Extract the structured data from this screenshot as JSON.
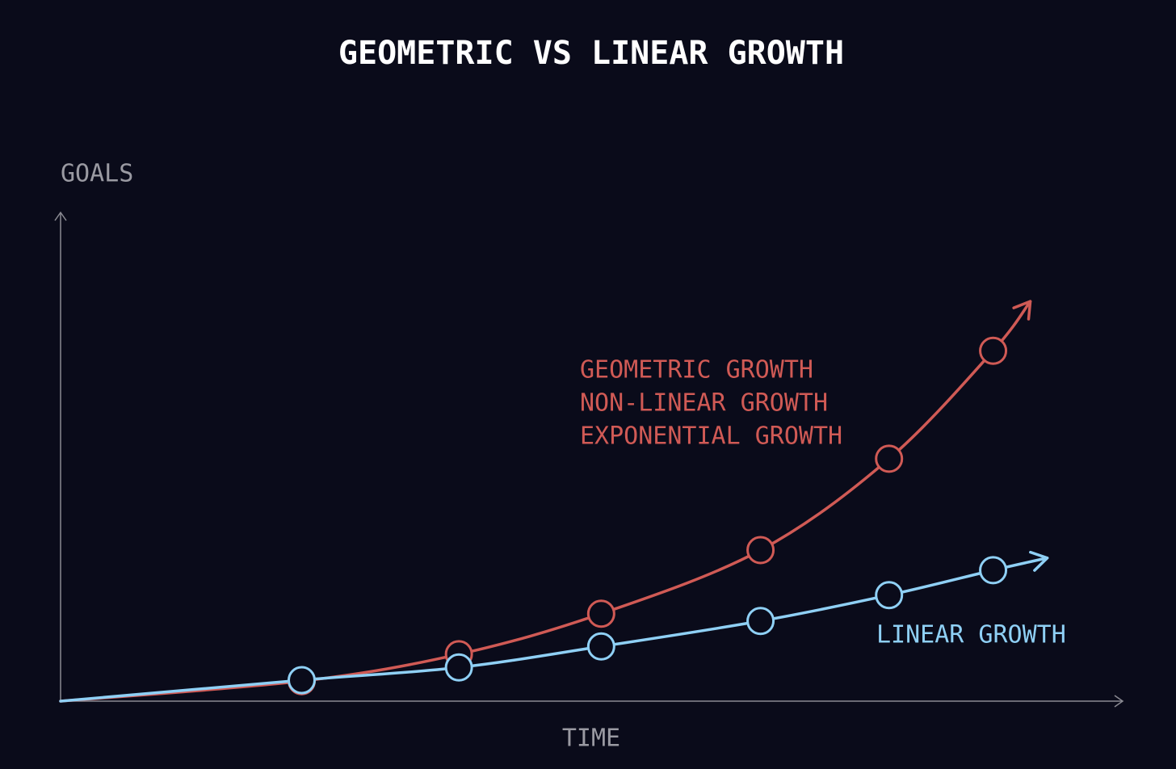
{
  "chart_data": {
    "type": "line",
    "title": "GEOMETRIC VS LINEAR GROWTH",
    "y_label": "GOALS",
    "x_label": "TIME",
    "xlim": [
      0,
      100
    ],
    "ylim": [
      0,
      100
    ],
    "series": [
      {
        "name": "GEOMETRIC GROWTH",
        "color": "#d05a55",
        "x": [
          0,
          22.7,
          37.5,
          50.9,
          65.9,
          78.0,
          87.8,
          91.3
        ],
        "values": [
          0,
          4.1,
          9.6,
          17.9,
          30.9,
          49.6,
          71.7,
          81.8
        ]
      },
      {
        "name": "LINEAR GROWTH",
        "color": "#8fd0f5",
        "x": [
          0,
          22.7,
          37.5,
          50.9,
          65.9,
          78.0,
          87.8,
          92.9
        ],
        "values": [
          0,
          4.3,
          6.9,
          11.2,
          16.4,
          21.7,
          26.8,
          29.3
        ]
      }
    ],
    "annotations": [
      "NON-LINEAR GROWTH",
      "EXPONENTIAL GROWTH"
    ]
  }
}
